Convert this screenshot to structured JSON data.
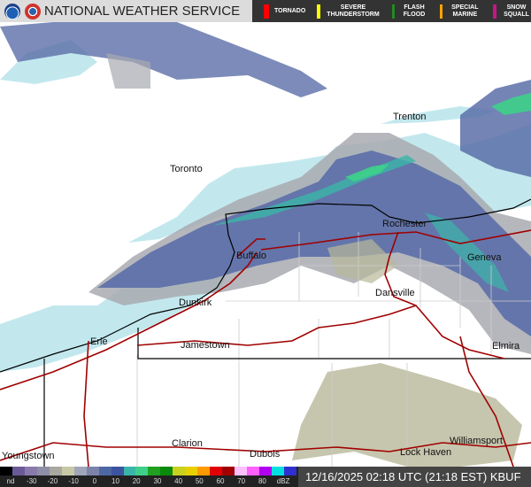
{
  "header": {
    "title": "NATIONAL WEATHER SERVICE",
    "logos": [
      "noaa-logo",
      "nws-logo"
    ],
    "warnings": [
      {
        "label": "TORNADO",
        "color": "#ff0000"
      },
      {
        "label": "SEVERE THUNDERSTORM",
        "color": "#ffff00"
      },
      {
        "label": "FLASH FLOOD",
        "color": "#228b22"
      },
      {
        "label": "SPECIAL MARINE",
        "color": "#ffa500"
      },
      {
        "label": "SNOW SQUALL",
        "color": "#c71585"
      }
    ]
  },
  "map": {
    "cities": [
      "Trenton",
      "Toronto",
      "Rochester",
      "Buffalo",
      "Geneva",
      "Dunkirk",
      "Dansville",
      "Erie",
      "Jamestown",
      "Elmira",
      "Clarion",
      "Dubois",
      "Youngstown",
      "Lock Haven",
      "Williamsport"
    ],
    "colors": {
      "land": "#ffffff",
      "water": "#c2e8ee",
      "roads": "#a00000",
      "borders": "#000000",
      "counties": "#cccccc"
    }
  },
  "legend": {
    "ticks": [
      "nd",
      "-30",
      "-20",
      "-10",
      "0",
      "10",
      "20",
      "30",
      "40",
      "50",
      "60",
      "70",
      "80",
      "dBZ"
    ],
    "colors": [
      "#000000",
      "#6a5a98",
      "#8a7aaa",
      "#8e8ea6",
      "#a8a8a0",
      "#c8c8a8",
      "#a0a6b8",
      "#7c82aa",
      "#4e68a3",
      "#3c54a0",
      "#3ab6a8",
      "#3ed08a",
      "#20a020",
      "#0a8a0a",
      "#c8d020",
      "#e8d000",
      "#ff9a00",
      "#e00000",
      "#a00000",
      "#ffc0ff",
      "#ff60ff",
      "#b000f0",
      "#00e0e0",
      "#3030d0"
    ]
  },
  "timestamp": "12/16/2025 02:18 UTC (21:18 EST) KBUF"
}
